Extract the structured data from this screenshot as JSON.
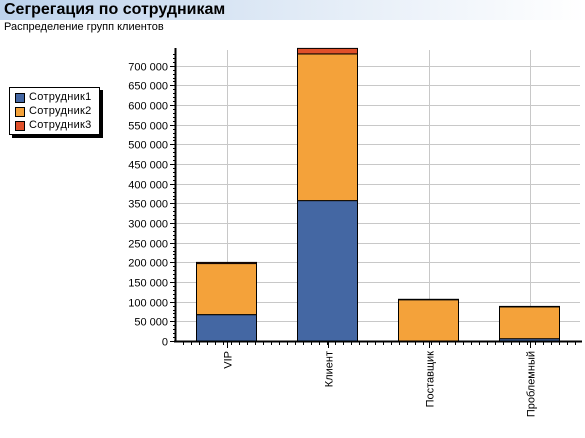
{
  "header": {
    "title": "Сегрегация по сотрудникам",
    "subtitle": "Распределение групп клиентов"
  },
  "chart_data": {
    "type": "bar",
    "stacked": true,
    "categories": [
      "VIP",
      "Клиент",
      "Поставщик",
      "Проблемный"
    ],
    "series": [
      {
        "name": "Сотрудник1",
        "color": "#4467a3",
        "values": [
          67000,
          357000,
          0,
          6000
        ]
      },
      {
        "name": "Сотрудник2",
        "color": "#f4a23a",
        "values": [
          130000,
          373000,
          105000,
          81000
        ]
      },
      {
        "name": "Сотрудник3",
        "color": "#e0502a",
        "values": [
          3000,
          14000,
          1000,
          1000
        ]
      }
    ],
    "ylim": [
      0,
      740000
    ],
    "yticks": [
      0,
      50000,
      100000,
      150000,
      200000,
      250000,
      300000,
      350000,
      400000,
      450000,
      500000,
      550000,
      600000,
      650000,
      700000
    ],
    "ytick_labels": [
      "0",
      "50 000",
      "100 000",
      "150 000",
      "200 000",
      "250 000",
      "300 000",
      "350 000",
      "400 000",
      "450 000",
      "500 000",
      "550 000",
      "600 000",
      "650 000",
      "700 000"
    ],
    "grid": true,
    "legend_position": "left"
  }
}
